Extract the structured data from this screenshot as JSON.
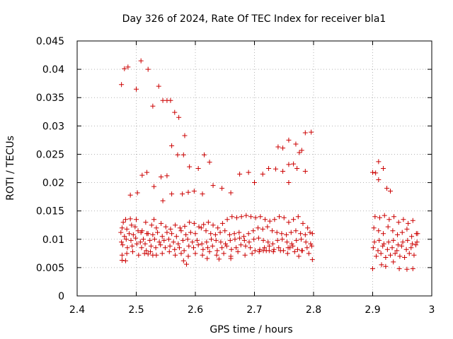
{
  "chart_data": {
    "type": "scatter",
    "title": "Day 326 of 2024, Rate Of TEC Index for receiver bla1",
    "xlabel": "GPS time / hours",
    "ylabel": "ROTI / TECUs",
    "xlim": [
      2.4,
      3.0
    ],
    "ylim": [
      0,
      0.045
    ],
    "xticks": [
      "2.4",
      "2.5",
      "2.6",
      "2.7",
      "2.8",
      "2.9",
      "3"
    ],
    "yticks": [
      "0",
      "0.005",
      "0.01",
      "0.015",
      "0.02",
      "0.025",
      "0.03",
      "0.035",
      "0.04",
      "0.045"
    ],
    "grid": true,
    "marker": "+",
    "color": "#cc0000",
    "series": [
      {
        "name": "bla1",
        "x": [
          2.475,
          2.48,
          2.486,
          2.5,
          2.508,
          2.52,
          2.528,
          2.538,
          2.545,
          2.552,
          2.558,
          2.565,
          2.572,
          2.582,
          2.476,
          2.482,
          2.49,
          2.502,
          2.51,
          2.518,
          2.53,
          2.542,
          2.552,
          2.56,
          2.57,
          2.58,
          2.59,
          2.605,
          2.615,
          2.624,
          2.74,
          2.748,
          2.758,
          2.766,
          2.776,
          2.786,
          2.796,
          2.758,
          2.77,
          2.78,
          2.905,
          2.91,
          2.49,
          2.498,
          2.51,
          2.518,
          2.53,
          2.545,
          2.56,
          2.578,
          2.588,
          2.598,
          2.612,
          2.63,
          2.645,
          2.66,
          2.675,
          2.69,
          2.7,
          2.714,
          2.724,
          2.736,
          2.748,
          2.758,
          2.772,
          2.786,
          2.9,
          2.91,
          2.918,
          2.924,
          2.93,
          2.478,
          2.484,
          2.492,
          2.5,
          2.508,
          2.516,
          2.526,
          2.534,
          2.542,
          2.55,
          2.558,
          2.566,
          2.574,
          2.582,
          2.59,
          2.598,
          2.606,
          2.614,
          2.622,
          2.63,
          2.638,
          2.646,
          2.654,
          2.662,
          2.67,
          2.678,
          2.686,
          2.694,
          2.702,
          2.71,
          2.718,
          2.726,
          2.734,
          2.742,
          2.75,
          2.758,
          2.766,
          2.774,
          2.782,
          2.79,
          2.798,
          2.904,
          2.912,
          2.92,
          2.928,
          2.936,
          2.944,
          2.952,
          2.96,
          2.968,
          2.976,
          2.474,
          2.48,
          2.488,
          2.495,
          2.503,
          2.512,
          2.52,
          2.528,
          2.536,
          2.544,
          2.552,
          2.56,
          2.568,
          2.576,
          2.584,
          2.592,
          2.6,
          2.61,
          2.618,
          2.626,
          2.634,
          2.642,
          2.65,
          2.658,
          2.666,
          2.674,
          2.682,
          2.69,
          2.698,
          2.706,
          2.714,
          2.722,
          2.73,
          2.738,
          2.746,
          2.754,
          2.762,
          2.77,
          2.778,
          2.786,
          2.794,
          2.902,
          2.91,
          2.918,
          2.926,
          2.934,
          2.942,
          2.95,
          2.958,
          2.966,
          2.974,
          2.475,
          2.483,
          2.491,
          2.499,
          2.507,
          2.515,
          2.523,
          2.531,
          2.539,
          2.547,
          2.555,
          2.563,
          2.571,
          2.579,
          2.587,
          2.595,
          2.603,
          2.611,
          2.619,
          2.627,
          2.635,
          2.643,
          2.651,
          2.659,
          2.667,
          2.675,
          2.683,
          2.691,
          2.699,
          2.707,
          2.715,
          2.723,
          2.731,
          2.739,
          2.747,
          2.755,
          2.763,
          2.771,
          2.779,
          2.787,
          2.795,
          2.903,
          2.911,
          2.919,
          2.927,
          2.935,
          2.943,
          2.951,
          2.959,
          2.967,
          2.975,
          2.477,
          2.485,
          2.493,
          2.501,
          2.509,
          2.517,
          2.525,
          2.533,
          2.541,
          2.549,
          2.557,
          2.565,
          2.573,
          2.581,
          2.589,
          2.597,
          2.605,
          2.613,
          2.621,
          2.629,
          2.637,
          2.645,
          2.653,
          2.661,
          2.669,
          2.677,
          2.685,
          2.693,
          2.701,
          2.709,
          2.717,
          2.725,
          2.733,
          2.741,
          2.749,
          2.757,
          2.765,
          2.773,
          2.781,
          2.789,
          2.797,
          2.901,
          2.909,
          2.917,
          2.925,
          2.933,
          2.941,
          2.949,
          2.957,
          2.965,
          2.973,
          2.476,
          2.484,
          2.494,
          2.504,
          2.514,
          2.524,
          2.534,
          2.544,
          2.556,
          2.566,
          2.576,
          2.588,
          2.6,
          2.612,
          2.624,
          2.636,
          2.648,
          2.66,
          2.672,
          2.684,
          2.696,
          2.708,
          2.72,
          2.732,
          2.744,
          2.756,
          2.768,
          2.78,
          2.792,
          2.906,
          2.914,
          2.922,
          2.93,
          2.938,
          2.946,
          2.954,
          2.962,
          2.97,
          2.476,
          2.482,
          2.52,
          2.528,
          2.58,
          2.585,
          2.62,
          2.64,
          2.66,
          2.715,
          2.725,
          2.76,
          2.775,
          2.798,
          2.9,
          2.915,
          2.922,
          2.935,
          2.945,
          2.958,
          2.968
        ],
        "y": [
          0.0373,
          0.0401,
          0.0404,
          0.0365,
          0.0415,
          0.04,
          0.0335,
          0.037,
          0.0345,
          0.0345,
          0.0345,
          0.0324,
          0.0315,
          0.0283,
          0.012,
          0.0135,
          0.0178,
          0.0182,
          0.0213,
          0.0218,
          0.0193,
          0.021,
          0.0212,
          0.0265,
          0.0249,
          0.0249,
          0.0228,
          0.0225,
          0.0249,
          0.0236,
          0.0263,
          0.0261,
          0.0275,
          0.0233,
          0.0253,
          0.0288,
          0.0289,
          0.0232,
          0.0268,
          0.0257,
          0.0217,
          0.0237,
          0.0136,
          0.0122,
          0.0115,
          0.011,
          0.0135,
          0.0168,
          0.018,
          0.018,
          0.0183,
          0.0185,
          0.018,
          0.0195,
          0.019,
          0.0182,
          0.0215,
          0.0218,
          0.02,
          0.0215,
          0.0225,
          0.0224,
          0.022,
          0.02,
          0.0225,
          0.022,
          0.0218,
          0.0205,
          0.0225,
          0.019,
          0.0185,
          0.013,
          0.0118,
          0.0125,
          0.0135,
          0.0112,
          0.013,
          0.0125,
          0.012,
          0.0128,
          0.0122,
          0.0118,
          0.0125,
          0.012,
          0.0123,
          0.013,
          0.0128,
          0.0122,
          0.0126,
          0.013,
          0.0125,
          0.012,
          0.0128,
          0.0135,
          0.014,
          0.0138,
          0.014,
          0.0142,
          0.014,
          0.0138,
          0.014,
          0.0135,
          0.0132,
          0.0135,
          0.014,
          0.0138,
          0.013,
          0.0135,
          0.014,
          0.0128,
          0.012,
          0.011,
          0.014,
          0.0138,
          0.0142,
          0.0135,
          0.014,
          0.013,
          0.0135,
          0.0128,
          0.0133,
          0.011,
          0.0112,
          0.0105,
          0.011,
          0.0108,
          0.0115,
          0.01,
          0.011,
          0.0108,
          0.0112,
          0.0105,
          0.0112,
          0.011,
          0.0105,
          0.0115,
          0.0108,
          0.0112,
          0.011,
          0.012,
          0.0115,
          0.011,
          0.0108,
          0.0112,
          0.0115,
          0.0108,
          0.011,
          0.0112,
          0.0105,
          0.011,
          0.0115,
          0.012,
          0.0118,
          0.0122,
          0.0115,
          0.0112,
          0.011,
          0.0108,
          0.0112,
          0.0115,
          0.011,
          0.0108,
          0.0112,
          0.012,
          0.0115,
          0.011,
          0.0122,
          0.0115,
          0.0108,
          0.0112,
          0.0118,
          0.0105,
          0.011,
          0.0095,
          0.01,
          0.0098,
          0.0102,
          0.0095,
          0.0092,
          0.0098,
          0.01,
          0.0095,
          0.0098,
          0.01,
          0.0095,
          0.0092,
          0.0098,
          0.01,
          0.0095,
          0.0098,
          0.0092,
          0.0095,
          0.01,
          0.0098,
          0.0095,
          0.0092,
          0.0098,
          0.01,
          0.0102,
          0.0098,
          0.0095,
          0.01,
          0.0102,
          0.0098,
          0.0095,
          0.0092,
          0.0098,
          0.01,
          0.0095,
          0.0092,
          0.0098,
          0.01,
          0.0095,
          0.0092,
          0.0095,
          0.0098,
          0.0092,
          0.0095,
          0.0098,
          0.009,
          0.0095,
          0.0098,
          0.0092,
          0.0095,
          0.009,
          0.0085,
          0.0088,
          0.0092,
          0.0085,
          0.008,
          0.0088,
          0.0085,
          0.009,
          0.0085,
          0.0088,
          0.0082,
          0.0085,
          0.008,
          0.0088,
          0.0085,
          0.009,
          0.0082,
          0.0085,
          0.0088,
          0.008,
          0.0085,
          0.0088,
          0.0082,
          0.0085,
          0.009,
          0.0088,
          0.0085,
          0.008,
          0.0082,
          0.0085,
          0.0088,
          0.0082,
          0.0085,
          0.008,
          0.0085,
          0.0088,
          0.0082,
          0.008,
          0.0085,
          0.0088,
          0.0085,
          0.008,
          0.0088,
          0.0082,
          0.0085,
          0.008,
          0.0088,
          0.0082,
          0.0085,
          0.009,
          0.0072,
          0.0075,
          0.0078,
          0.0072,
          0.0075,
          0.0078,
          0.0072,
          0.0075,
          0.0078,
          0.0072,
          0.0075,
          0.007,
          0.0075,
          0.0072,
          0.0078,
          0.0072,
          0.0075,
          0.007,
          0.0078,
          0.0072,
          0.0075,
          0.0078,
          0.008,
          0.0078,
          0.008,
          0.0075,
          0.0078,
          0.008,
          0.0075,
          0.007,
          0.0075,
          0.0068,
          0.0072,
          0.0075,
          0.007,
          0.0068,
          0.0075,
          0.0072,
          0.0063,
          0.0062,
          0.0074,
          0.0072,
          0.0062,
          0.0056,
          0.0066,
          0.0065,
          0.0066,
          0.008,
          0.008,
          0.0085,
          0.007,
          0.0064,
          0.0048,
          0.0055,
          0.0052,
          0.006,
          0.0048,
          0.0047,
          0.0048
        ]
      }
    ]
  }
}
